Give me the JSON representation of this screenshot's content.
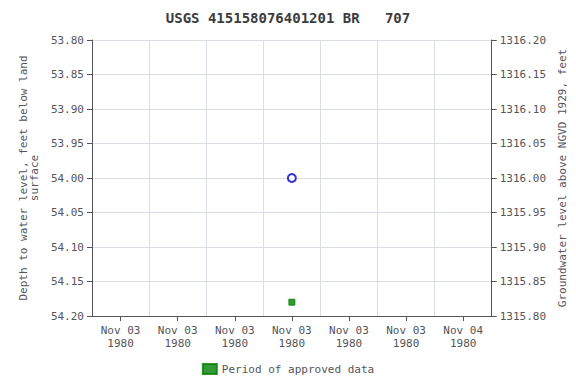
{
  "chart_data": {
    "type": "scatter",
    "title": "USGS 415158076401201 BR   707",
    "y_label": "Depth to water level, feet below land\nsurface",
    "y2_label": "Groundwater level above NGVD 1929, feet",
    "categories": [
      "Nov 03\n1980",
      "Nov 03\n1980",
      "Nov 03\n1980",
      "Nov 03\n1980",
      "Nov 03\n1980",
      "Nov 03\n1980",
      "Nov 04\n1980"
    ],
    "series": [
      {
        "color": "#0000cc",
        "marker": "open_circle",
        "values": [
          null,
          null,
          null,
          54.0,
          null,
          null,
          null
        ]
      },
      {
        "name": "Period of approved data",
        "color": "#008000",
        "marker": "square",
        "values": [
          null,
          null,
          null,
          54.18,
          null,
          null,
          null
        ]
      }
    ],
    "ylim": [
      54.2,
      53.8
    ],
    "yticks": [
      {
        "value": 53.8,
        "label": "53.80"
      },
      {
        "value": 53.85,
        "label": "53.85"
      },
      {
        "value": 53.9,
        "label": "53.90"
      },
      {
        "value": 53.95,
        "label": "53.95"
      },
      {
        "value": 54.0,
        "label": "54.00"
      },
      {
        "value": 54.05,
        "label": "54.05"
      },
      {
        "value": 54.1,
        "label": "54.10"
      },
      {
        "value": 54.15,
        "label": "54.15"
      },
      {
        "value": 54.2,
        "label": "54.20"
      }
    ],
    "y2lim": [
      1315.8,
      1316.2
    ],
    "y2ticks": [
      {
        "value": 1316.2,
        "label": "1316.20"
      },
      {
        "value": 1316.15,
        "label": "1316.15"
      },
      {
        "value": 1316.1,
        "label": "1316.10"
      },
      {
        "value": 1316.05,
        "label": "1316.05"
      },
      {
        "value": 1316.0,
        "label": "1316.00"
      },
      {
        "value": 1315.95,
        "label": "1315.95"
      },
      {
        "value": 1315.9,
        "label": "1315.90"
      },
      {
        "value": 1315.85,
        "label": "1315.85"
      },
      {
        "value": 1315.8,
        "label": "1315.80"
      }
    ],
    "grid": true,
    "legend": "bottom"
  }
}
